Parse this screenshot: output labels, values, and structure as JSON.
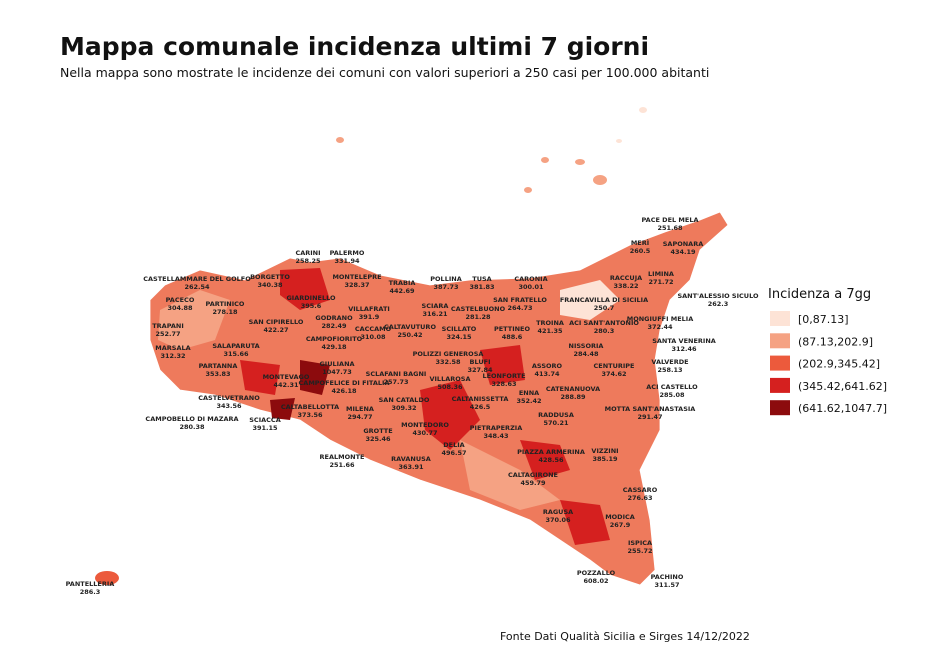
{
  "title": "Mappa comunale incidenza ultimi 7 giorni",
  "subtitle": "Nella mappa sono mostrate le incidenze dei comuni con valori superiori a 250 casi per 100.000 abitanti",
  "legend": {
    "title": "Incidenza a 7gg",
    "items": [
      {
        "label": "[0,87.13]",
        "color": "#fde3d6"
      },
      {
        "label": "(87.13,202.9]",
        "color": "#f5a283"
      },
      {
        "label": "(202.9,345.42]",
        "color": "#ec5a3c"
      },
      {
        "label": "(345.42,641.62]",
        "color": "#d5201f"
      },
      {
        "label": "(641.62,1047.7]",
        "color": "#8c0b0d"
      }
    ]
  },
  "labels": [
    {
      "name": "CASTELLAMMARE DEL GOLFO",
      "value": "262.54"
    },
    {
      "name": "CARINI",
      "value": "258.25"
    },
    {
      "name": "PALERMO",
      "value": "331.94"
    },
    {
      "name": "BORGETTO",
      "value": "340.38"
    },
    {
      "name": "MONTELEPRE",
      "value": "328.37"
    },
    {
      "name": "TRABIA",
      "value": "442.69"
    },
    {
      "name": "POLLINA",
      "value": "387.73"
    },
    {
      "name": "TUSA",
      "value": "381.83"
    },
    {
      "name": "CARONIA",
      "value": "300.01"
    },
    {
      "name": "PACECO",
      "value": "304.88"
    },
    {
      "name": "PARTINICO",
      "value": "278.18"
    },
    {
      "name": "GIARDINELLO",
      "value": "395.6"
    },
    {
      "name": "SCIARA",
      "value": "316.21"
    },
    {
      "name": "SAN FRATELLO",
      "value": "264.73"
    },
    {
      "name": "CASTELBUONO",
      "value": "281.28"
    },
    {
      "name": "FRANCAVILLA DI SICILIA",
      "value": "250.7"
    },
    {
      "name": "MERÌ",
      "value": "260.5"
    },
    {
      "name": "PACE DEL MELA",
      "value": "251.68"
    },
    {
      "name": "SAPONARA",
      "value": "434.19"
    },
    {
      "name": "RACCUJA",
      "value": "338.22"
    },
    {
      "name": "LIMINA",
      "value": "271.72"
    },
    {
      "name": "SANT'ALESSIO SICULO",
      "value": "262.3"
    },
    {
      "name": "MONGIUFFI MELIA",
      "value": "372.44"
    },
    {
      "name": "SANTA VENERINA",
      "value": "312.46"
    },
    {
      "name": "TRAPANI",
      "value": "252.77"
    },
    {
      "name": "SAN CIPIRELLO",
      "value": "422.27"
    },
    {
      "name": "VILLAFRATI",
      "value": "391.9"
    },
    {
      "name": "GODRANO",
      "value": "282.49"
    },
    {
      "name": "CACCAMO",
      "value": "310.08"
    },
    {
      "name": "CALTAVUTURO",
      "value": "250.42"
    },
    {
      "name": "SCILLATO",
      "value": "324.15"
    },
    {
      "name": "PETTINEO",
      "value": "488.6"
    },
    {
      "name": "TROINA",
      "value": "421.35"
    },
    {
      "name": "ACI SANT'ANTONIO",
      "value": "280.3"
    },
    {
      "name": "CAMPOFIORITO",
      "value": "429.18"
    },
    {
      "name": "MARSALA",
      "value": "312.32"
    },
    {
      "name": "SALAPARUTA",
      "value": "315.66"
    },
    {
      "name": "POLIZZI GENEROSA",
      "value": "332.58"
    },
    {
      "name": "BLUFI",
      "value": "327.84"
    },
    {
      "name": "NISSORIA",
      "value": "284.48"
    },
    {
      "name": "PARTANNA",
      "value": "353.83"
    },
    {
      "name": "GIULIANA",
      "value": "1047.73"
    },
    {
      "name": "SCLAFANI BAGNI",
      "value": "257.73"
    },
    {
      "name": "LEONFORTE",
      "value": "328.63"
    },
    {
      "name": "ASSORO",
      "value": "413.74"
    },
    {
      "name": "CENTURIPE",
      "value": "374.62"
    },
    {
      "name": "VALVERDE",
      "value": "258.13"
    },
    {
      "name": "MONTEVAGO",
      "value": "442.31"
    },
    {
      "name": "CAMPOFELICE DI FITALIA",
      "value": "426.18"
    },
    {
      "name": "VILLAROSA",
      "value": "508.36"
    },
    {
      "name": "CATENANUOVA",
      "value": "288.89"
    },
    {
      "name": "ACI CASTELLO",
      "value": "285.08"
    },
    {
      "name": "CASTELVETRANO",
      "value": "343.56"
    },
    {
      "name": "CALTABELLOTTA",
      "value": "373.56"
    },
    {
      "name": "SAN CATALDO",
      "value": "309.32"
    },
    {
      "name": "CALTANISSETTA",
      "value": "426.5"
    },
    {
      "name": "ENNA",
      "value": "352.42"
    },
    {
      "name": "MOTTA SANT'ANASTASIA",
      "value": "291.47"
    },
    {
      "name": "MILENA",
      "value": "294.77"
    },
    {
      "name": "RADDUSA",
      "value": "570.21"
    },
    {
      "name": "CAMPOBELLO DI MAZARA",
      "value": "280.38"
    },
    {
      "name": "SCIACCA",
      "value": "391.15"
    },
    {
      "name": "MONTEDORO",
      "value": "430.77"
    },
    {
      "name": "GROTTE",
      "value": "325.46"
    },
    {
      "name": "PIETRAPERZIA",
      "value": "348.43"
    },
    {
      "name": "DELIA",
      "value": "496.57"
    },
    {
      "name": "PIAZZA ARMERINA",
      "value": "428.56"
    },
    {
      "name": "VIZZINI",
      "value": "385.19"
    },
    {
      "name": "REALMONTE",
      "value": "251.66"
    },
    {
      "name": "RAVANUSA",
      "value": "363.91"
    },
    {
      "name": "CALTAGIRONE",
      "value": "459.79"
    },
    {
      "name": "CASSARO",
      "value": "276.63"
    },
    {
      "name": "RAGUSA",
      "value": "370.06"
    },
    {
      "name": "MODICA",
      "value": "267.9"
    },
    {
      "name": "ISPICA",
      "value": "255.72"
    },
    {
      "name": "POZZALLO",
      "value": "608.02"
    },
    {
      "name": "PACHINO",
      "value": "311.57"
    },
    {
      "name": "PANTELLERIA",
      "value": "286.3"
    }
  ],
  "source": "Fonte Dati Qualità Sicilia e Sirges 14/12/2022"
}
